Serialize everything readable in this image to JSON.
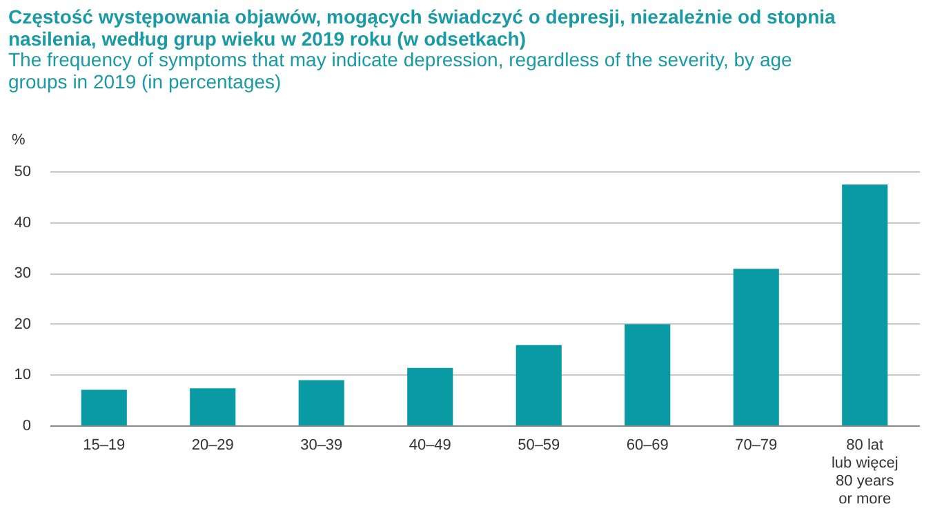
{
  "chart_data": {
    "type": "bar",
    "title": "Częstość występowania objawów, mogących świadczyć o depresji, niezależnie od stopnia nasilenia, według grup wieku w 2019 roku (w odsetkach)",
    "subtitle": "The frequency of symptoms that may indicate depression, regardless of the severity, by age groups in 2019 (in percentages)",
    "ylabel": "%",
    "categories": [
      "15–19",
      "20–29",
      "30–39",
      "40–49",
      "50–59",
      "60–69",
      "70–79",
      "80 lat\nlub więcej\n80 years\nor more"
    ],
    "values": [
      7.0,
      7.3,
      8.9,
      11.3,
      15.8,
      19.9,
      30.8,
      47.4
    ],
    "color": "#0a9aa4",
    "ylim": [
      0,
      50
    ],
    "yticks": [
      0,
      10,
      20,
      30,
      40,
      50
    ],
    "grid": "y"
  }
}
